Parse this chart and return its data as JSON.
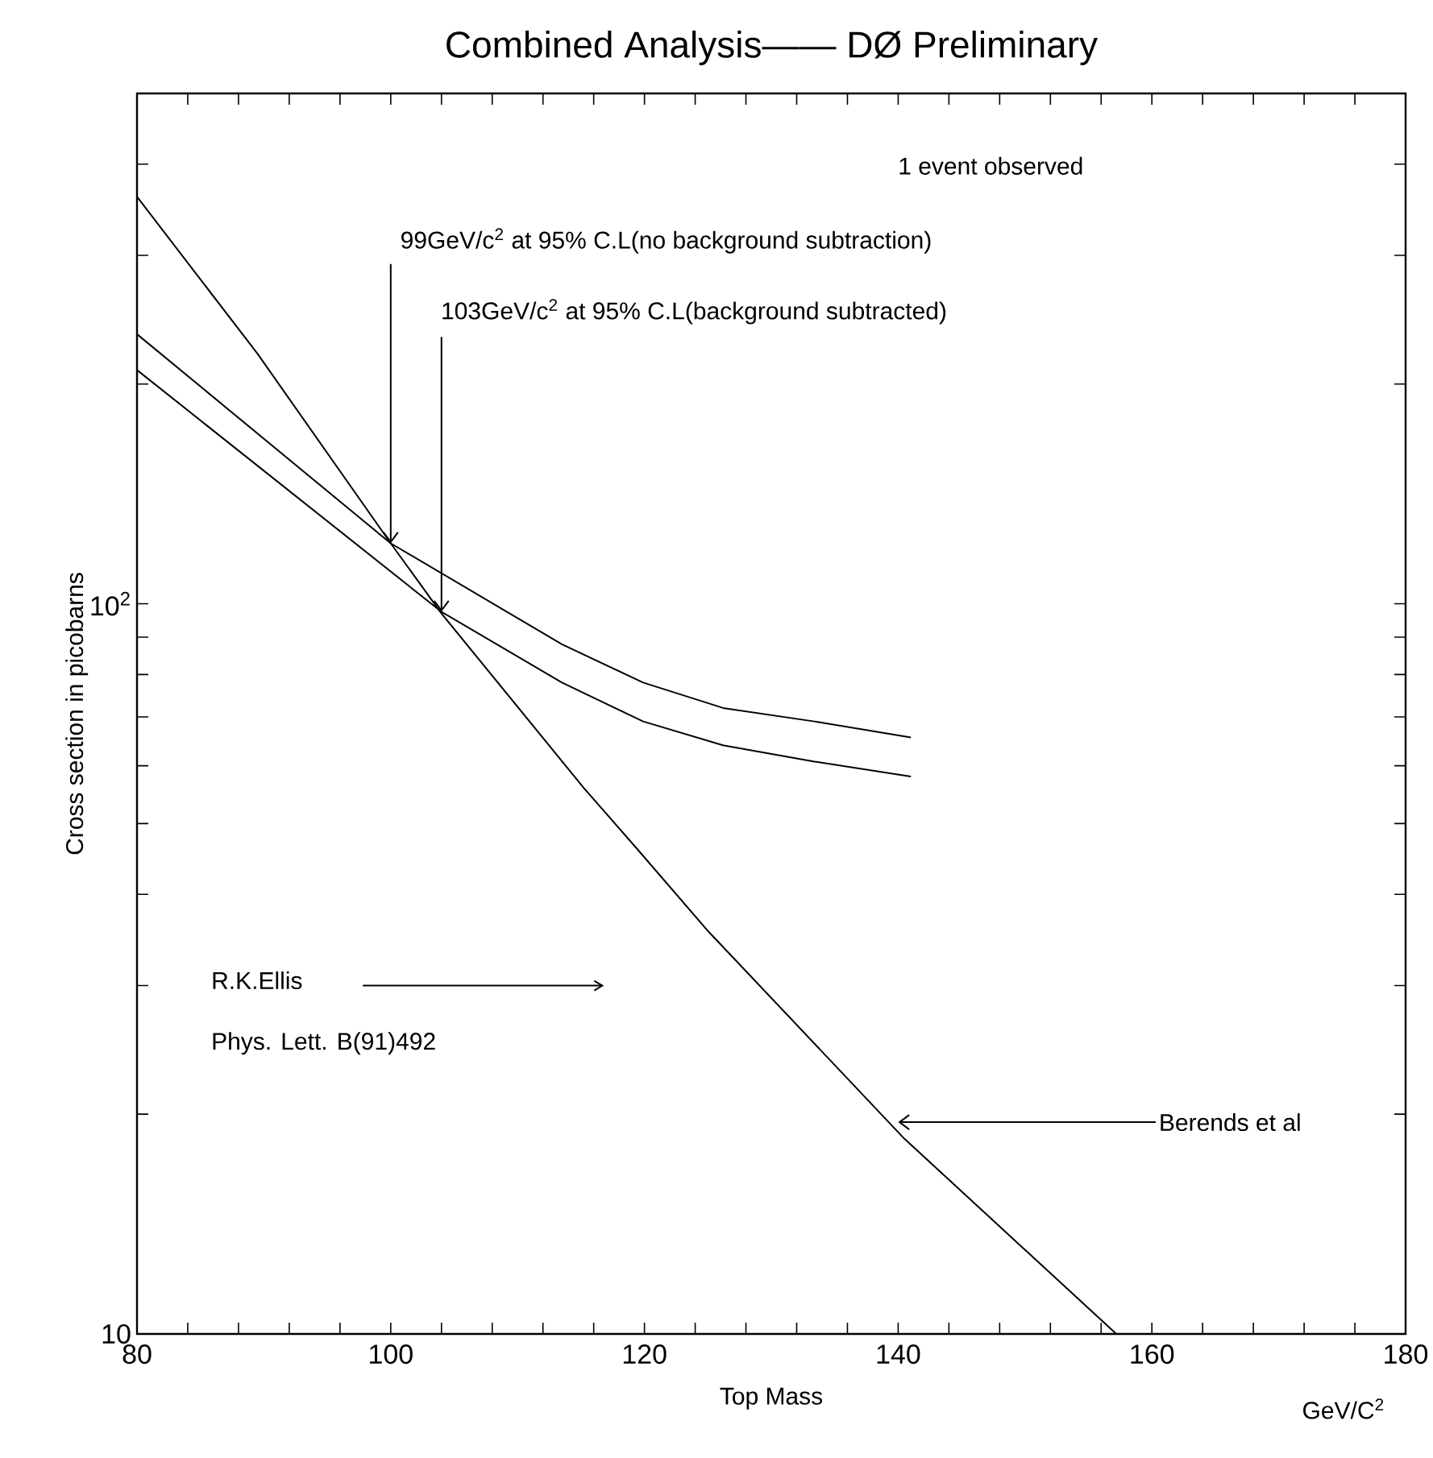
{
  "chart_data": {
    "type": "line",
    "title": "Combined Analysis—— DØ Preliminary",
    "xlabel": "Top Mass",
    "ylabel": "Cross section in picobarns",
    "log": "y",
    "xlim": [
      80,
      180
    ],
    "ylim": [
      10,
      500
    ],
    "xticks": [
      80,
      {
        "value": 84,
        "label": null
      },
      {
        "value": 88,
        "label": null
      },
      {
        "value": 92,
        "label": null
      },
      {
        "value": 96,
        "label": null
      },
      100,
      {
        "value": 104,
        "label": null
      },
      {
        "value": 108,
        "label": null
      },
      {
        "value": 112,
        "label": null
      },
      {
        "value": 116,
        "label": null
      },
      120,
      {
        "value": 124,
        "label": null
      },
      {
        "value": 128,
        "label": null
      },
      {
        "value": 132,
        "label": null
      },
      {
        "value": 136,
        "label": null
      },
      140,
      {
        "value": 144,
        "label": null
      },
      {
        "value": 148,
        "label": null
      },
      {
        "value": 152,
        "label": null
      },
      {
        "value": 156,
        "label": null
      },
      160,
      {
        "value": 164,
        "label": null
      },
      {
        "value": 168,
        "label": null
      },
      {
        "value": 172,
        "label": null
      },
      {
        "value": 176,
        "label": null
      },
      180
    ],
    "yticks": [
      {
        "value": 10,
        "label": "10"
      },
      {
        "value": 20,
        "label": null
      },
      {
        "value": 30,
        "label": null
      },
      {
        "value": 40,
        "label": null
      },
      {
        "value": 50,
        "label": null
      },
      {
        "value": 60,
        "label": null
      },
      {
        "value": 70,
        "label": null
      },
      {
        "value": 80,
        "label": null
      },
      {
        "value": 90,
        "label": null
      },
      {
        "value": 100,
        "label": "10$^{2}$"
      },
      {
        "value": 200,
        "label": null
      },
      {
        "value": 300,
        "label": null
      },
      {
        "value": 400,
        "label": null
      }
    ],
    "marker": "none",
    "line_style": "solid",
    "series": [
      {
        "color": "#000000",
        "x": [
          80,
          89.5,
          100,
          104,
          115.2,
          119.5,
          124.9,
          140.5,
          157.2
        ],
        "values": [
          361,
          220,
          121,
          97,
          56,
          46,
          35.8,
          18.5,
          10
        ]
      },
      {
        "color": "#000000",
        "x": [
          80,
          100,
          113.5,
          119.9,
          126.2,
          133.4,
          141
        ],
        "values": [
          234,
          121,
          88,
          78,
          72,
          69,
          65.6
        ]
      },
      {
        "color": "#000000",
        "x": [
          80,
          104,
          113.5,
          119.9,
          126.2,
          133.4,
          141
        ],
        "values": [
          209,
          97.5,
          78,
          69,
          64,
          60.8,
          58
        ]
      }
    ],
    "annotations": [
      "1 event observed",
      {
        "text": "99GeV/c$^{2}$ at 95% C.L(no background subtraction)",
        "x": 100,
        "y": 121
      },
      {
        "text": "103GeV/c$^{2}$ at 95% C.L(background subtracted)",
        "x": 104,
        "y": 97.5
      },
      "R.K.Ellis",
      "Phys. Lett. B(91)492",
      {
        "text": "Berends et al",
        "x": 140,
        "y": 19.5
      },
      "GeV/C$^{2}$"
    ]
  }
}
